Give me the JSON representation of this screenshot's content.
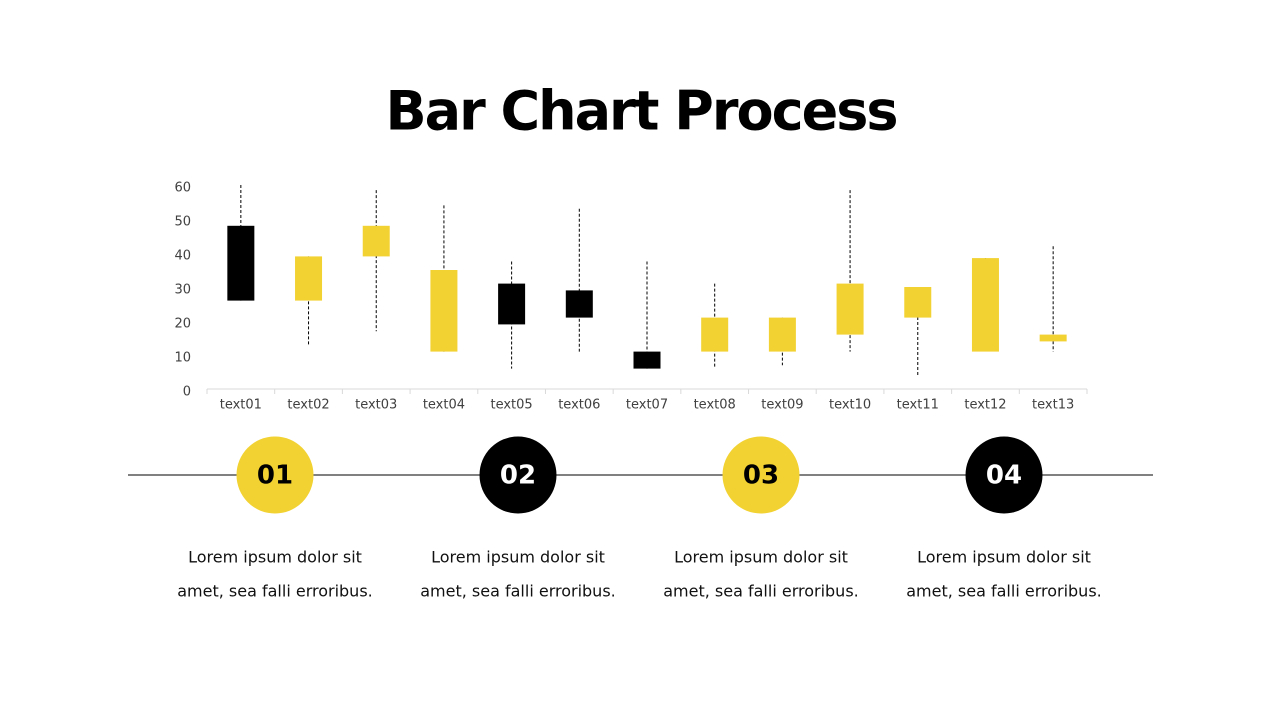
{
  "title": "Bar Chart Process",
  "chart_data": {
    "type": "candlestick",
    "categories": [
      "text01",
      "text02",
      "text03",
      "text04",
      "text05",
      "text06",
      "text07",
      "text08",
      "text09",
      "text10",
      "text11",
      "text12",
      "text13"
    ],
    "open": [
      48,
      26,
      39,
      11,
      31,
      29,
      11,
      11,
      11,
      16,
      21,
      11,
      14
    ],
    "high": [
      60,
      39,
      58.5,
      54,
      37.5,
      53,
      37.5,
      31,
      21,
      58.5,
      30,
      38.5,
      42
    ],
    "low": [
      26,
      13,
      17,
      11,
      6,
      11,
      6,
      6,
      7,
      11,
      4,
      11,
      11
    ],
    "close": [
      26,
      39,
      48,
      35,
      19,
      21,
      6,
      21,
      21,
      31,
      30,
      38.5,
      16
    ],
    "up_color": "#F2D232",
    "down_color": "#000000",
    "ylim": [
      0,
      60
    ],
    "yticks": [
      0,
      10,
      20,
      30,
      40,
      50,
      60
    ]
  },
  "steps": [
    {
      "number": "01",
      "color": "#F2D232",
      "text_color": "#000000",
      "lines": [
        "Lorem ipsum dolor sit",
        "amet, sea falli erroribus."
      ]
    },
    {
      "number": "02",
      "color": "#000000",
      "text_color": "#FFFFFF",
      "lines": [
        "Lorem ipsum dolor sit",
        "amet, sea falli erroribus."
      ]
    },
    {
      "number": "03",
      "color": "#F2D232",
      "text_color": "#000000",
      "lines": [
        "Lorem ipsum dolor sit",
        "amet, sea falli erroribus."
      ]
    },
    {
      "number": "04",
      "color": "#000000",
      "text_color": "#FFFFFF",
      "lines": [
        "Lorem ipsum dolor sit",
        "amet, sea falli erroribus."
      ]
    }
  ]
}
